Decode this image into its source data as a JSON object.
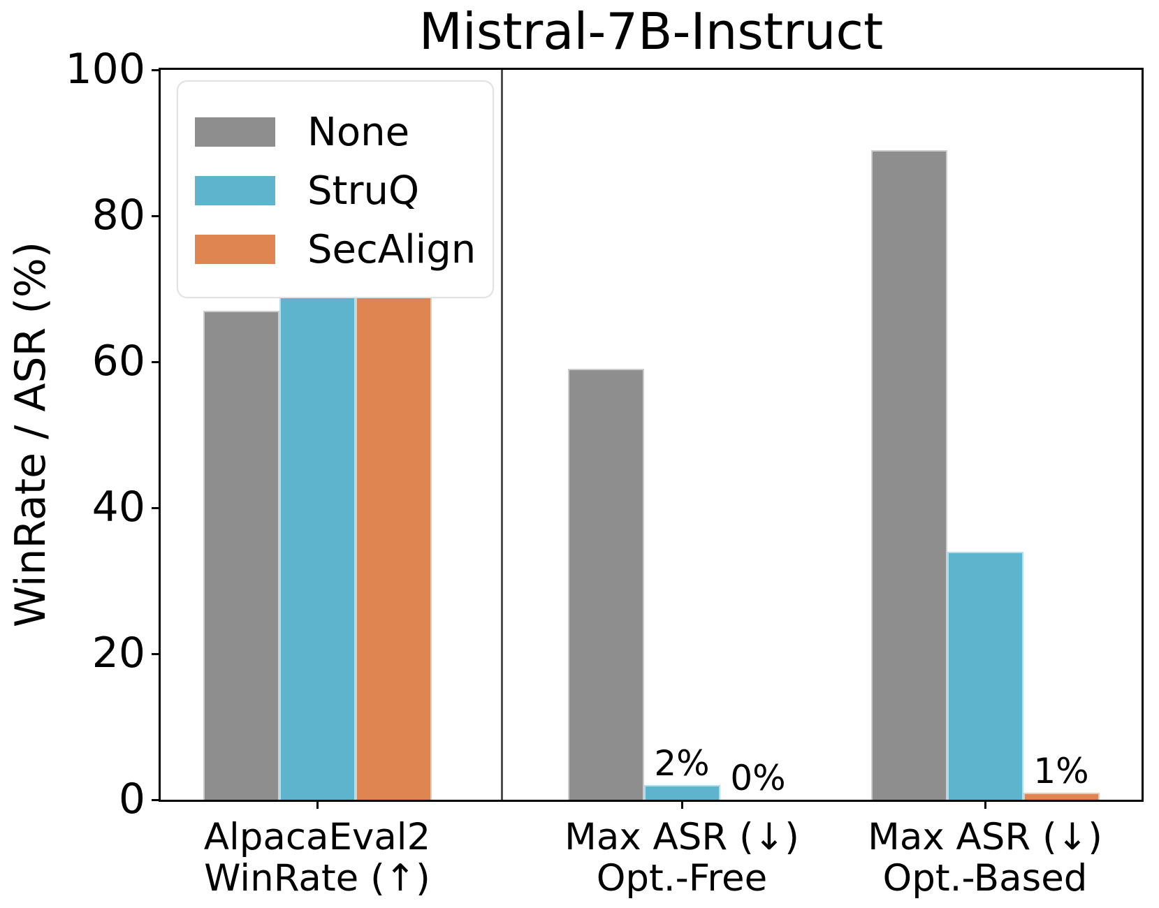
{
  "chart_data": {
    "type": "bar",
    "title": "Mistral-7B-Instruct",
    "ylabel": "WinRate / ASR (%)",
    "ylim": [
      0,
      100
    ],
    "yticks": [
      "0",
      "20",
      "40",
      "60",
      "80",
      "100"
    ],
    "ytick_values": [
      0,
      20,
      40,
      60,
      80,
      100
    ],
    "grid": false,
    "legend_position": "upper left",
    "categories": [
      [
        "AlpacaEval2",
        "WinRate (↑)"
      ],
      [
        "Max ASR (↓)",
        "Opt.-Free"
      ],
      [
        "Max ASR (↓)",
        "Opt.-Based"
      ]
    ],
    "series": [
      {
        "name": "None",
        "color": "#8e8e8e",
        "values": [
          67,
          59,
          89
        ]
      },
      {
        "name": "StruQ",
        "color": "#5fb4cd",
        "values": [
          71,
          2,
          34
        ]
      },
      {
        "name": "SecAlign",
        "color": "#de8552",
        "values": [
          69,
          0,
          1
        ]
      }
    ],
    "bar_labels": [
      {
        "text": "2%",
        "category": 1,
        "series": 1
      },
      {
        "text": "0%",
        "category": 1,
        "series": 2
      },
      {
        "text": "1%",
        "category": 2,
        "series": 2
      }
    ]
  }
}
